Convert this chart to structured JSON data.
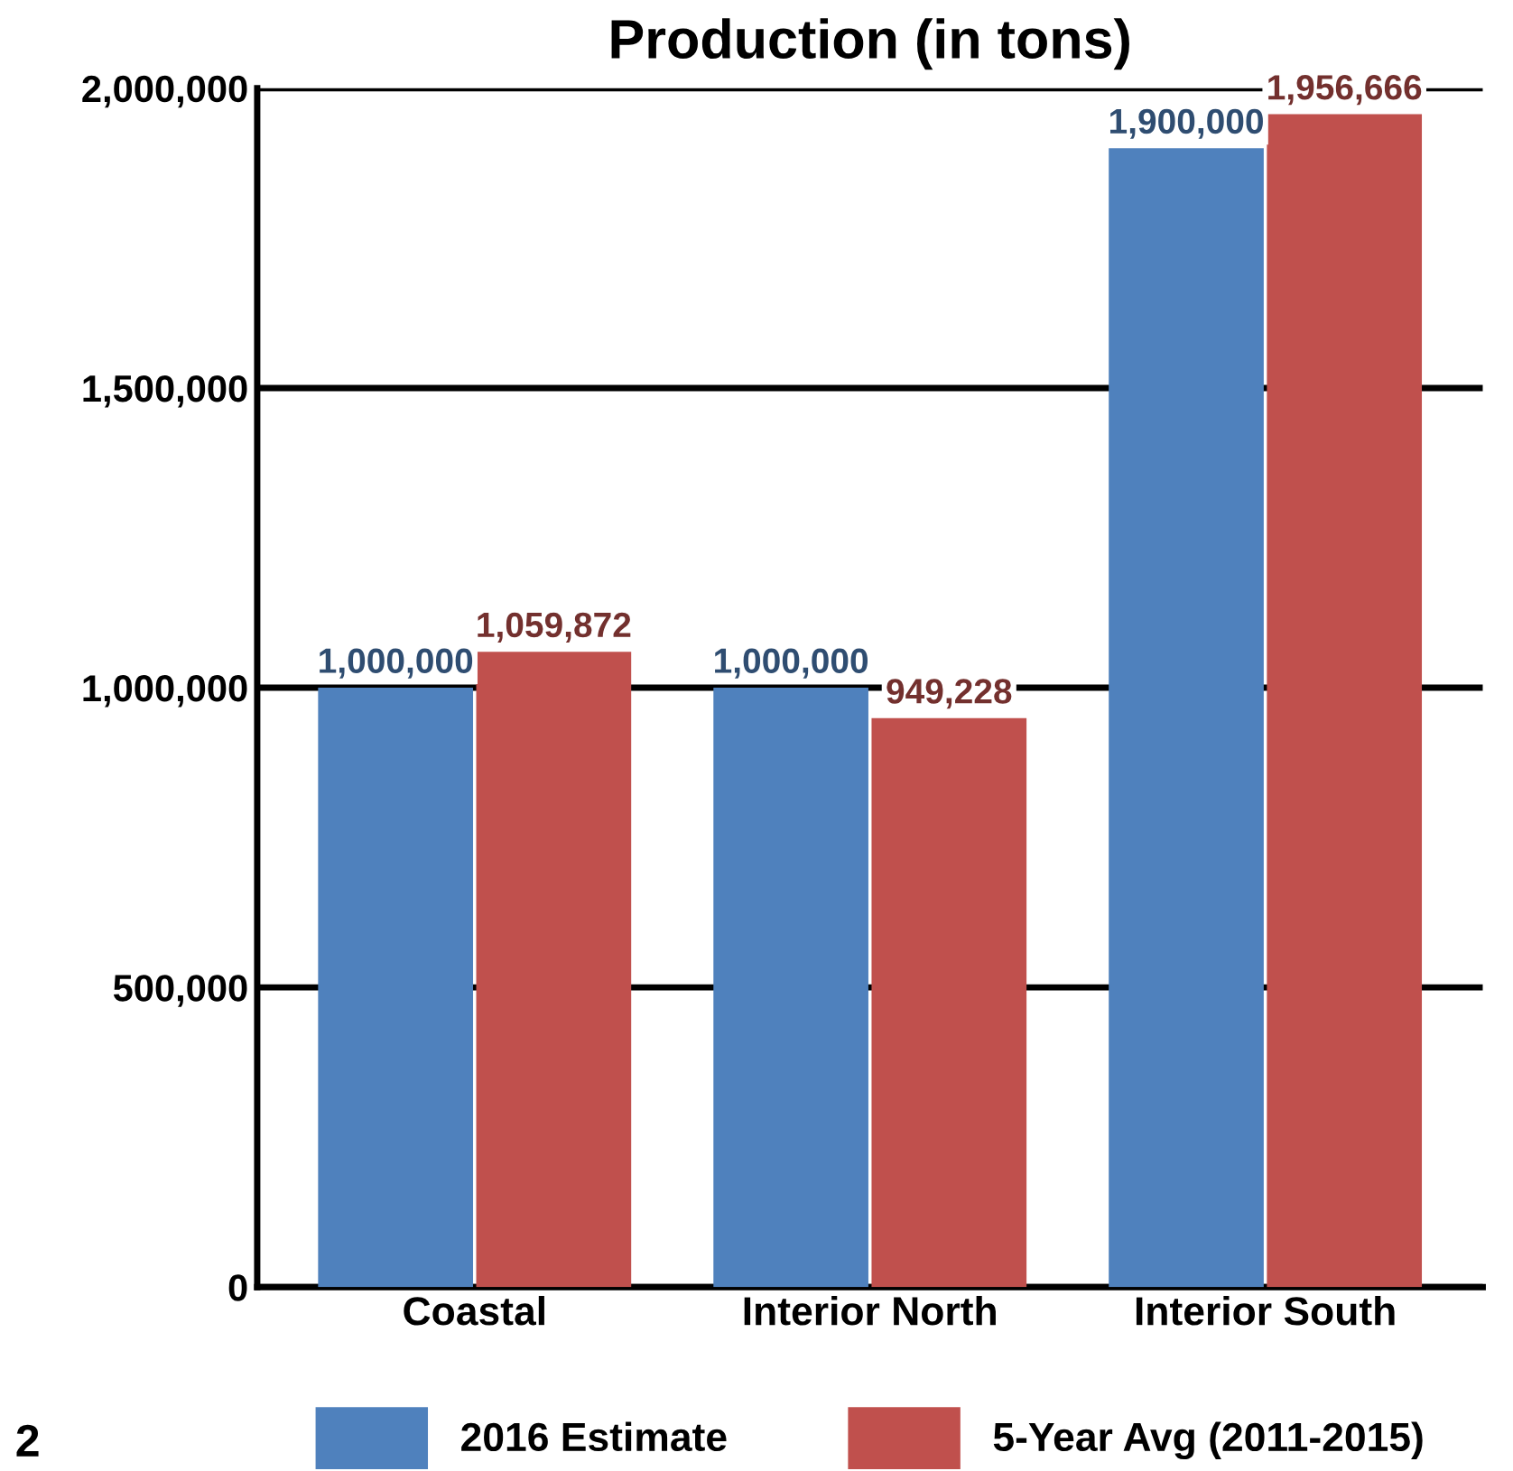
{
  "chart_data": {
    "type": "bar",
    "title": "Production (in tons)",
    "categories": [
      "Coastal",
      "Interior North",
      "Interior South"
    ],
    "series": [
      {
        "name": "2016 Estimate",
        "color": "#4f81bd",
        "values": [
          1000000,
          1000000,
          1900000
        ],
        "value_labels": [
          "1,000,000",
          "1,000,000",
          "1,900,000"
        ]
      },
      {
        "name": "5-Year Avg (2011-2015)",
        "color": "#c0504d",
        "values": [
          1059872,
          949228,
          1956666
        ],
        "value_labels": [
          "1,059,872",
          "949,228",
          "1,956,666"
        ]
      }
    ],
    "ylim": [
      0,
      2000000
    ],
    "yticks": [
      {
        "value": 0,
        "label": "0"
      },
      {
        "value": 500000,
        "label": "500,000"
      },
      {
        "value": 1000000,
        "label": "1,000,000"
      },
      {
        "value": 1500000,
        "label": "1,500,000"
      },
      {
        "value": 2000000,
        "label": "2,000,000"
      }
    ],
    "grid": "y",
    "legend": "bottom",
    "annotations": [
      "2"
    ]
  }
}
